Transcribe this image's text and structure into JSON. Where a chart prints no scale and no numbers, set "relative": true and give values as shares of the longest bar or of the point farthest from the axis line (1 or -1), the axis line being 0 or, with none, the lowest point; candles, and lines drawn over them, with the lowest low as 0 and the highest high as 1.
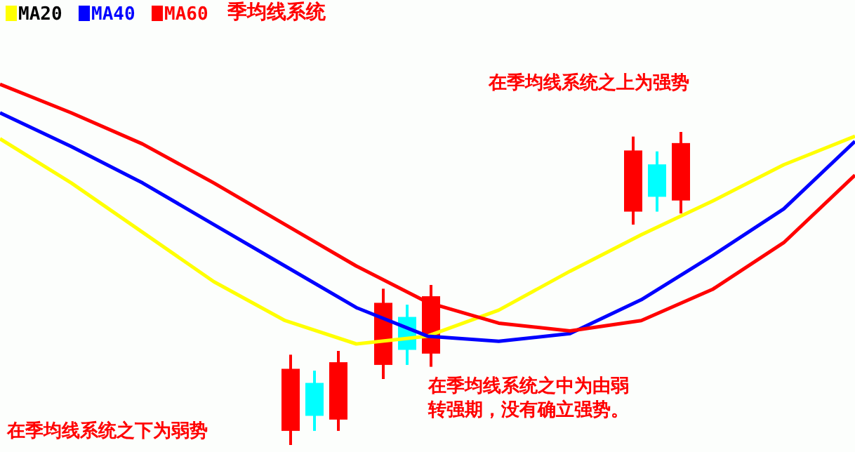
{
  "chart_data": [
    {
      "type": "line",
      "title": "季均线系统",
      "relative": true,
      "legend": "top left",
      "categories": [
        null,
        null,
        null,
        null,
        null,
        null,
        null,
        null,
        null,
        null,
        null,
        null,
        null
      ],
      "series": [
        {
          "name": "MA20",
          "color": "#ffff00",
          "values": [
            0.79,
            0.62,
            0.43,
            0.24,
            0.09,
            0,
            0.03,
            0.13,
            0.28,
            0.42,
            0.55,
            0.69,
            0.8
          ]
        },
        {
          "name": "MA40",
          "color": "#0000ff",
          "values": [
            0.89,
            0.76,
            0.62,
            0.46,
            0.3,
            0.14,
            0.03,
            0.01,
            0.04,
            0.17,
            0.34,
            0.52,
            0.78
          ]
        },
        {
          "name": "MA60",
          "color": "#ff0000",
          "values": [
            1.0,
            0.89,
            0.77,
            0.62,
            0.46,
            0.3,
            0.16,
            0.08,
            0.05,
            0.09,
            0.21,
            0.39,
            0.65
          ]
        }
      ],
      "annotations": [
        "在季均线系统之上为强势",
        "在季均线系统之中为由弱转强期，没有确立强势。",
        "在季均线系统之下为弱势"
      ]
    },
    {
      "type": "candlestick",
      "relative": true,
      "categories": [
        null,
        null,
        null
      ],
      "colors": [
        "#ff0000",
        "#00ffff",
        "#ff0000"
      ],
      "ohlc": [
        [
          0.15,
          0.96,
          0,
          0.81
        ],
        [
          0.66,
          0.79,
          0.15,
          0.31
        ],
        [
          0.27,
          1.0,
          0.15,
          0.88
        ]
      ]
    },
    {
      "type": "candlestick",
      "relative": true,
      "categories": [
        null,
        null,
        null
      ],
      "colors": [
        "#ff0000",
        "#00ffff",
        "#ff0000"
      ],
      "ohlc": [
        [
          0.15,
          0.96,
          0,
          0.81
        ],
        [
          0.66,
          0.79,
          0.15,
          0.31
        ],
        [
          0.27,
          1.0,
          0.13,
          0.88
        ]
      ]
    },
    {
      "type": "candlestick",
      "relative": true,
      "categories": [
        null,
        null,
        null
      ],
      "colors": [
        "#ff0000",
        "#00ffff",
        "#ff0000"
      ],
      "ohlc": [
        [
          0.14,
          0.95,
          0,
          0.8
        ],
        [
          0.65,
          0.79,
          0.14,
          0.3
        ],
        [
          0.26,
          1.0,
          0.12,
          0.88
        ]
      ]
    }
  ]
}
